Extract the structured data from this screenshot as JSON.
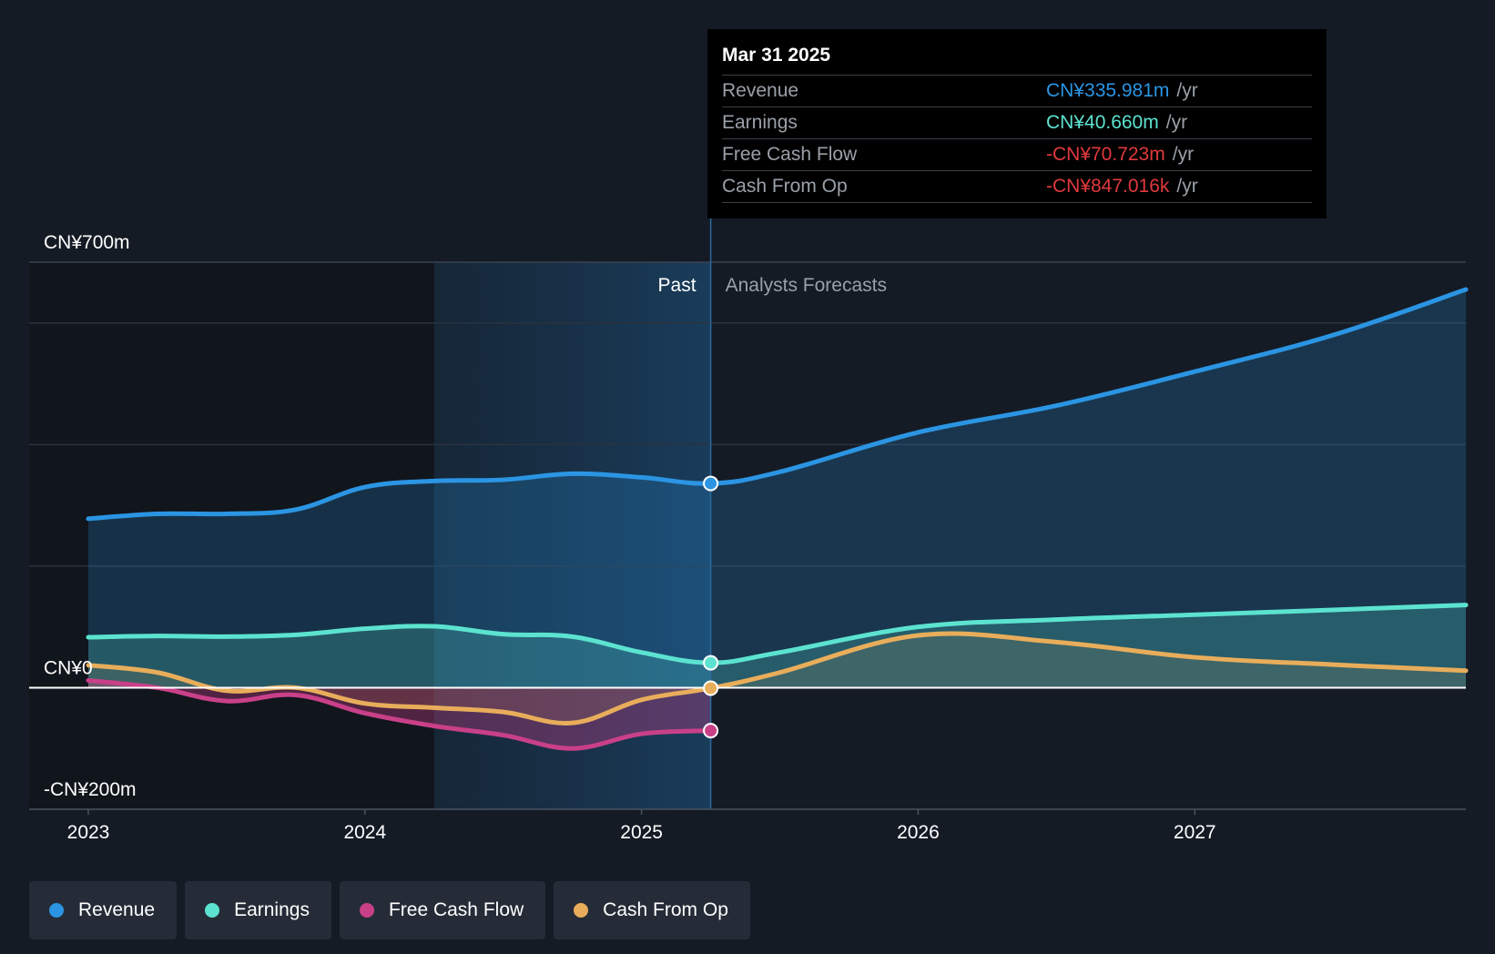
{
  "chart_data": {
    "type": "line",
    "currency_unit": "CN¥ millions",
    "y_axis": {
      "min": -200,
      "max": 700,
      "labels": [
        {
          "value": 700,
          "text": "CN¥700m"
        },
        {
          "value": 0,
          "text": "CN¥0"
        },
        {
          "value": -200,
          "text": "-CN¥200m"
        }
      ],
      "gridlines": [
        700,
        600,
        400,
        200,
        0,
        -200
      ]
    },
    "x_axis": {
      "min": 2023.0,
      "max": 2027.98,
      "ticks": [
        {
          "value": 2023,
          "text": "2023"
        },
        {
          "value": 2024,
          "text": "2024"
        },
        {
          "value": 2025,
          "text": "2025"
        },
        {
          "value": 2026,
          "text": "2026"
        },
        {
          "value": 2027,
          "text": "2027"
        }
      ]
    },
    "regions": {
      "past_label": "Past",
      "forecast_label": "Analysts Forecasts",
      "highlight_start": 2024.25,
      "divider": 2025.25
    },
    "series": [
      {
        "name": "Revenue",
        "color": "#2b95e3",
        "fill": true,
        "fill_past_only": false,
        "points": [
          [
            2023.0,
            278
          ],
          [
            2023.25,
            286
          ],
          [
            2023.5,
            286
          ],
          [
            2023.75,
            293
          ],
          [
            2024.0,
            330
          ],
          [
            2024.25,
            340
          ],
          [
            2024.5,
            342
          ],
          [
            2024.75,
            352
          ],
          [
            2025.0,
            346
          ],
          [
            2025.25,
            336
          ],
          [
            2025.5,
            355
          ],
          [
            2026.0,
            420
          ],
          [
            2026.5,
            464
          ],
          [
            2027.0,
            520
          ],
          [
            2027.5,
            580
          ],
          [
            2027.98,
            655
          ]
        ]
      },
      {
        "name": "Earnings",
        "color": "#5ce3d0",
        "fill": true,
        "fill_past_only": false,
        "points": [
          [
            2023.0,
            83
          ],
          [
            2023.25,
            85
          ],
          [
            2023.5,
            84
          ],
          [
            2023.75,
            87
          ],
          [
            2024.0,
            97
          ],
          [
            2024.25,
            101
          ],
          [
            2024.5,
            88
          ],
          [
            2024.75,
            84
          ],
          [
            2025.0,
            58
          ],
          [
            2025.25,
            41
          ],
          [
            2025.5,
            58
          ],
          [
            2026.0,
            100
          ],
          [
            2026.5,
            112
          ],
          [
            2027.0,
            120
          ],
          [
            2027.5,
            128
          ],
          [
            2027.98,
            136
          ]
        ]
      },
      {
        "name": "Free Cash Flow",
        "color": "#c94089",
        "fill": true,
        "fill_past_only": true,
        "points": [
          [
            2023.0,
            12
          ],
          [
            2023.25,
            0
          ],
          [
            2023.5,
            -22
          ],
          [
            2023.75,
            -12
          ],
          [
            2024.0,
            -42
          ],
          [
            2024.25,
            -63
          ],
          [
            2024.5,
            -78
          ],
          [
            2024.75,
            -100
          ],
          [
            2025.0,
            -76
          ],
          [
            2025.25,
            -70.7
          ]
        ]
      },
      {
        "name": "Cash From Op",
        "color": "#e8ad5b",
        "fill": true,
        "fill_past_only": false,
        "points": [
          [
            2023.0,
            37
          ],
          [
            2023.25,
            25
          ],
          [
            2023.5,
            -5
          ],
          [
            2023.75,
            0
          ],
          [
            2024.0,
            -26
          ],
          [
            2024.25,
            -33
          ],
          [
            2024.5,
            -40
          ],
          [
            2024.75,
            -58
          ],
          [
            2025.0,
            -20
          ],
          [
            2025.25,
            -0.8
          ],
          [
            2025.5,
            25
          ],
          [
            2026.0,
            86
          ],
          [
            2026.5,
            75
          ],
          [
            2027.0,
            50
          ],
          [
            2027.5,
            38
          ],
          [
            2027.98,
            28
          ]
        ]
      }
    ],
    "marker_x": 2025.25
  },
  "tooltip": {
    "date": "Mar 31 2025",
    "rows": [
      {
        "label": "Revenue",
        "value": "CN¥335.981m",
        "unit": "/yr",
        "color": "#2b95e3"
      },
      {
        "label": "Earnings",
        "value": "CN¥40.660m",
        "unit": "/yr",
        "color": "#5ce3d0"
      },
      {
        "label": "Free Cash Flow",
        "value": "-CN¥70.723m",
        "unit": "/yr",
        "color": "#e0393e"
      },
      {
        "label": "Cash From Op",
        "value": "-CN¥847.016k",
        "unit": "/yr",
        "color": "#e0393e"
      }
    ]
  },
  "legend": [
    {
      "label": "Revenue",
      "color": "#2b95e3"
    },
    {
      "label": "Earnings",
      "color": "#5ce3d0"
    },
    {
      "label": "Free Cash Flow",
      "color": "#c94089"
    },
    {
      "label": "Cash From Op",
      "color": "#e8ad5b"
    }
  ]
}
